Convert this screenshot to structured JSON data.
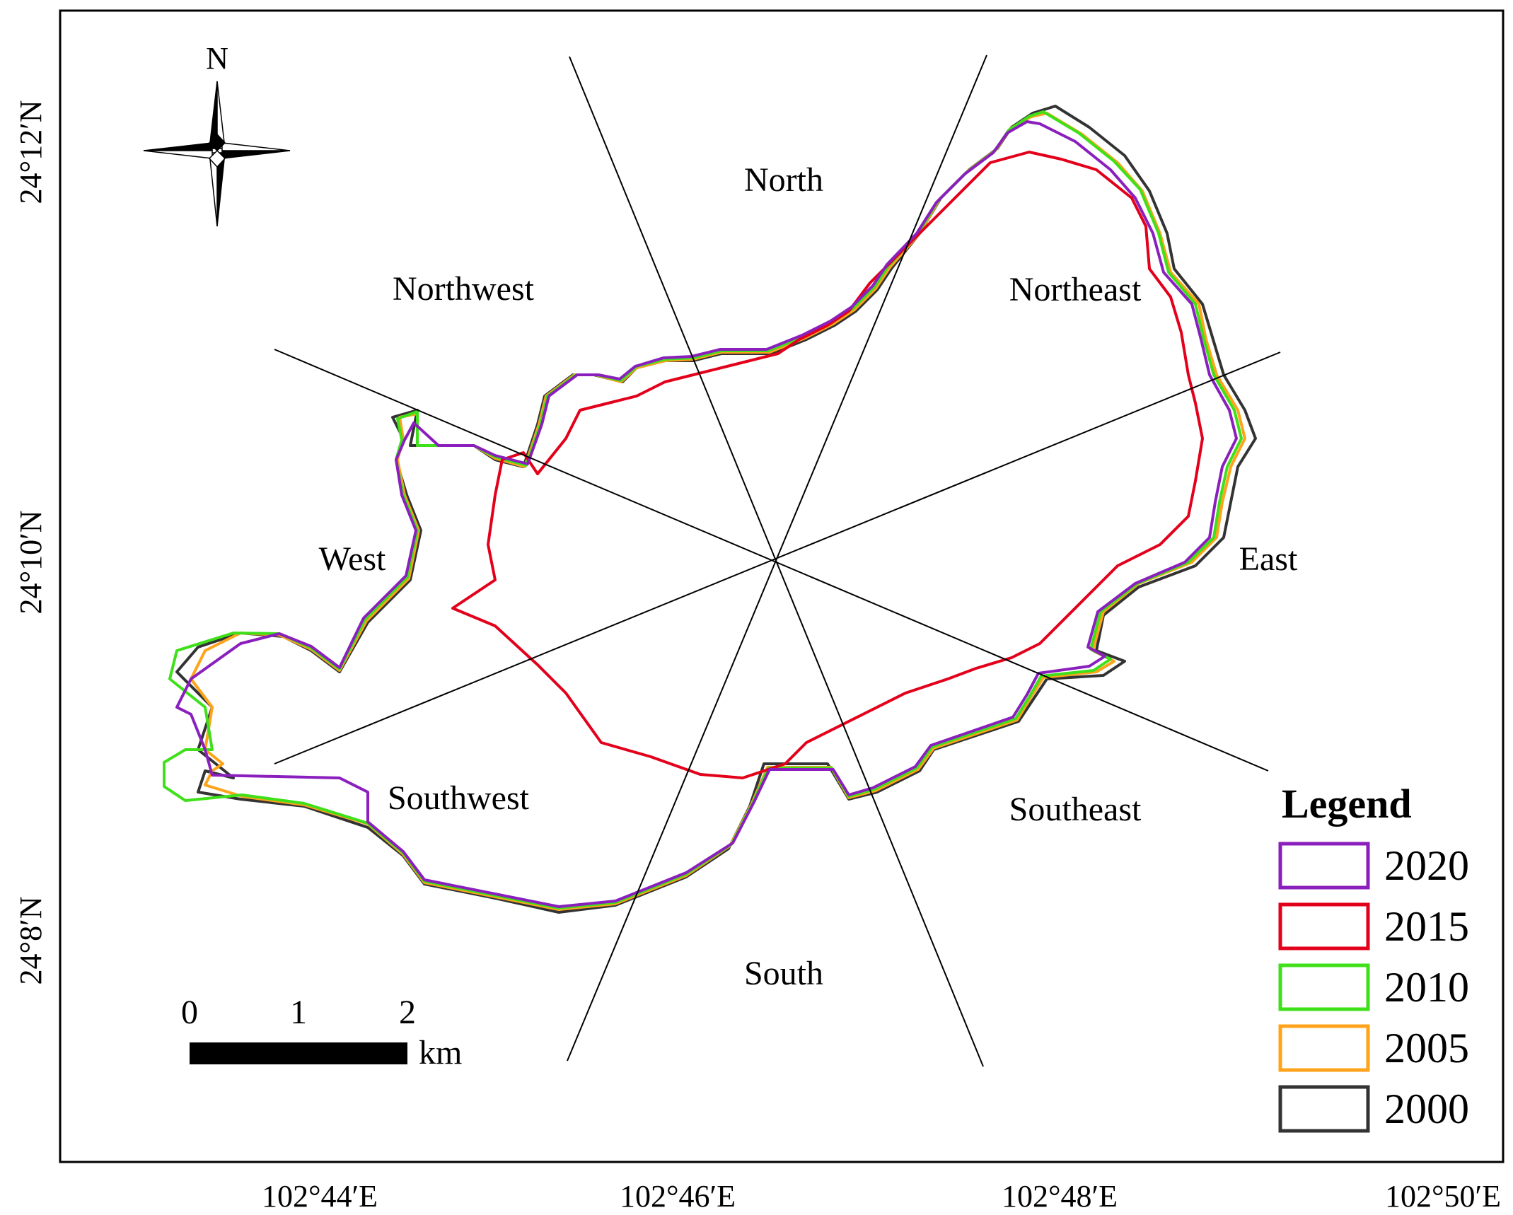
{
  "map": {
    "north_label": "N",
    "sector_labels": {
      "north": "North",
      "northeast": "Northeast",
      "east": "East",
      "southeast": "Southeast",
      "south": "South",
      "southwest": "Southwest",
      "west": "West",
      "northwest": "Northwest"
    },
    "longitude_labels": [
      "102°44′E",
      "102°46′E",
      "102°48′E",
      "102°50′E"
    ],
    "latitude_labels": [
      "24°12′N",
      "24°10′N",
      "24°8′N"
    ]
  },
  "scale_bar": {
    "ticks": [
      "0",
      "1",
      "2"
    ],
    "unit": "km"
  },
  "legend": {
    "title": "Legend",
    "items": [
      {
        "year": "2020",
        "color": "#8a1fbd"
      },
      {
        "year": "2015",
        "color": "#e3001b"
      },
      {
        "year": "2010",
        "color": "#3fe01a"
      },
      {
        "year": "2005",
        "color": "#ffa31a"
      },
      {
        "year": "2000",
        "color": "#333333"
      }
    ]
  }
}
